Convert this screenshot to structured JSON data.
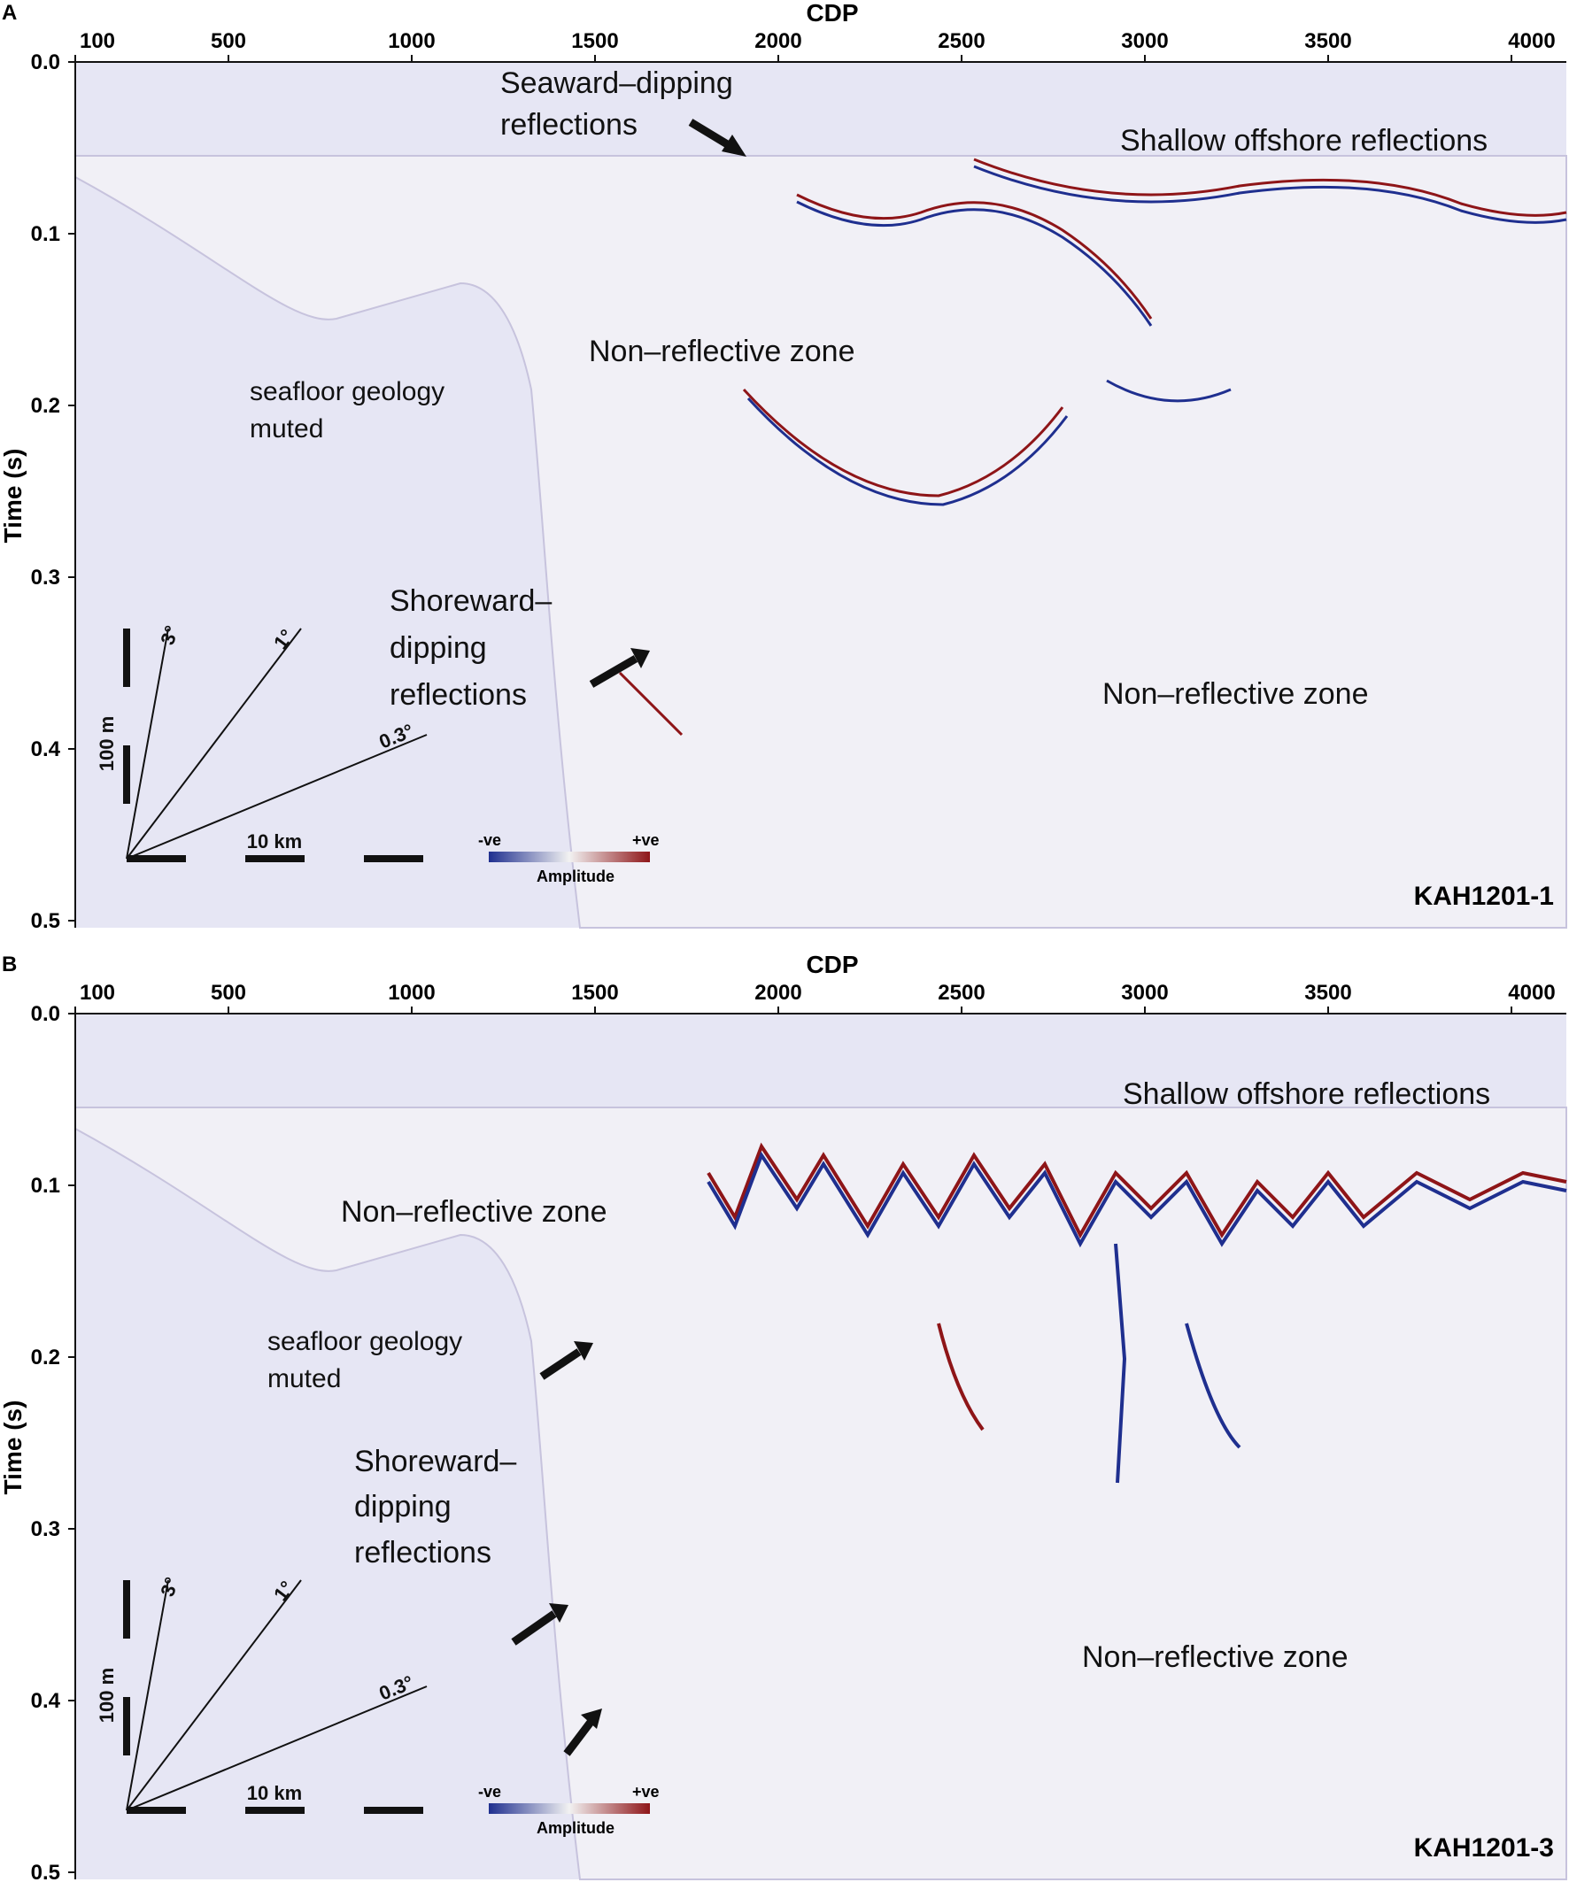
{
  "figure": {
    "colors": {
      "background": "#e6e6f4",
      "negative": "#1f2f8f",
      "positive": "#8e1518",
      "text": "#111111"
    },
    "x_axis": {
      "title": "CDP",
      "ticks": [
        "100",
        "500",
        "1000",
        "1500",
        "2000",
        "2500",
        "3000",
        "3500",
        "4000"
      ]
    },
    "y_axis": {
      "title": "Time (s)",
      "ticks": [
        "0.0",
        "0.1",
        "0.2",
        "0.3",
        "0.4",
        "0.5"
      ]
    },
    "scale_bar": {
      "vertical_label": "100 m",
      "horizontal_label": "10 km",
      "angles": [
        "3°",
        "1°",
        "0.3°"
      ]
    },
    "amplitude_legend": {
      "negative_label": "-ve",
      "positive_label": "+ve",
      "title": "Amplitude"
    },
    "panels": [
      {
        "letter": "A",
        "line_name": "KAH1201-1",
        "annotations": [
          "Seaward–dipping",
          "reflections",
          "Shallow offshore reflections",
          "Non–reflective zone",
          "seafloor geology",
          "muted",
          "Shoreward–",
          "dipping",
          "reflections",
          "Non–reflective zone"
        ]
      },
      {
        "letter": "B",
        "line_name": "KAH1201-3",
        "annotations": [
          "Shallow offshore reflections",
          "Non–reflective zone",
          "seafloor geology",
          "muted",
          "Shoreward–",
          "dipping",
          "reflections",
          "Non–reflective zone"
        ]
      }
    ]
  }
}
